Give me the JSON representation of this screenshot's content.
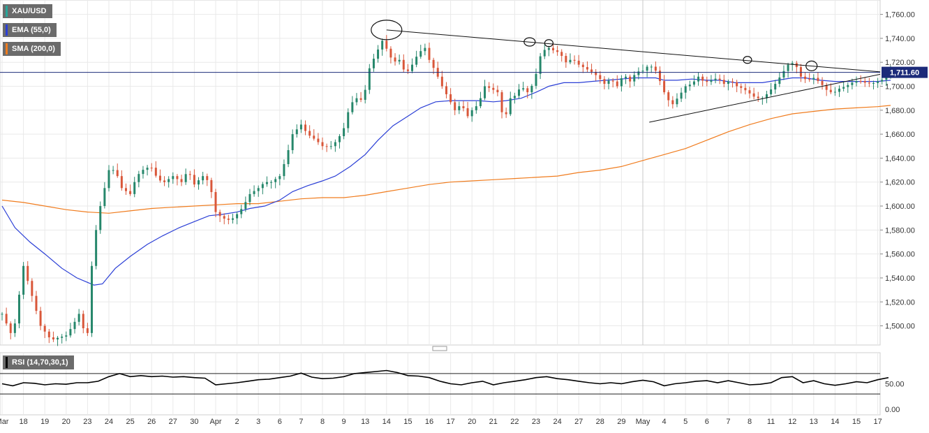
{
  "legend": {
    "main": {
      "label": "XAU/USD",
      "color": "#26a69a"
    },
    "ema": {
      "label": "EMA (55,0)",
      "color": "#2b3fd6"
    },
    "sma": {
      "label": "SMA (200,0)",
      "color": "#f07c1e"
    },
    "rsi": {
      "label": "RSI (14,70,30,1)",
      "color": "#000000"
    }
  },
  "colors": {
    "up": "#26876b",
    "down": "#d9573a",
    "ema": "#2b3fd6",
    "sma": "#f07c1e",
    "grid": "#e9e9e9",
    "price_line": "#1c2b7a",
    "price_badge": "#1c2b7a"
  },
  "chart_data": {
    "type": "candlestick",
    "symbol": "XAU/USD",
    "current_price_label": "1,711.60",
    "current_price": 1711.6,
    "y_range": [
      1484,
      1772
    ],
    "y_ticks": [
      {
        "v": 1500,
        "label": "1,500.00"
      },
      {
        "v": 1520,
        "label": "1,520.00"
      },
      {
        "v": 1540,
        "label": "1,540.00"
      },
      {
        "v": 1560,
        "label": "1,560.00"
      },
      {
        "v": 1580,
        "label": "1,580.00"
      },
      {
        "v": 1600,
        "label": "1,600.00"
      },
      {
        "v": 1620,
        "label": "1,620.00"
      },
      {
        "v": 1640,
        "label": "1,640.00"
      },
      {
        "v": 1660,
        "label": "1,660.00"
      },
      {
        "v": 1680,
        "label": "1,680.00"
      },
      {
        "v": 1700,
        "label": "1,700.00"
      },
      {
        "v": 1720,
        "label": "1,720.00"
      },
      {
        "v": 1740,
        "label": "1,740.00"
      },
      {
        "v": 1760,
        "label": "1,760.00"
      }
    ],
    "x_labels": [
      "Mar",
      "18",
      "19",
      "20",
      "23",
      "24",
      "25",
      "26",
      "27",
      "30",
      "Apr",
      "2",
      "3",
      "6",
      "7",
      "8",
      "9",
      "13",
      "14",
      "15",
      "16",
      "17",
      "20",
      "21",
      "22",
      "23",
      "24",
      "27",
      "28",
      "29",
      "May",
      "4",
      "5",
      "6",
      "7",
      "8",
      "11",
      "12",
      "13",
      "14",
      "15",
      "17"
    ],
    "price_path": [
      [
        0,
        1510
      ],
      [
        0.5,
        1490
      ],
      [
        1,
        1550
      ],
      [
        1.4,
        1525
      ],
      [
        1.8,
        1500
      ],
      [
        2.3,
        1488
      ],
      [
        2.6,
        1490
      ],
      [
        3,
        1492
      ],
      [
        3.3,
        1500
      ],
      [
        3.6,
        1510
      ],
      [
        3.9,
        1492
      ],
      [
        4,
        1494
      ],
      [
        4.1,
        1530
      ],
      [
        4.3,
        1570
      ],
      [
        4.6,
        1600
      ],
      [
        5,
        1630
      ],
      [
        5.3,
        1630
      ],
      [
        5.6,
        1615
      ],
      [
        6,
        1610
      ],
      [
        6.3,
        1625
      ],
      [
        6.7,
        1632
      ],
      [
        7,
        1632
      ],
      [
        7.3,
        1622
      ],
      [
        7.6,
        1620
      ],
      [
        8,
        1625
      ],
      [
        8.4,
        1620
      ],
      [
        8.7,
        1630
      ],
      [
        9,
        1618
      ],
      [
        9.4,
        1625
      ],
      [
        9.7,
        1620
      ],
      [
        10,
        1595
      ],
      [
        10.3,
        1590
      ],
      [
        10.7,
        1588
      ],
      [
        11.1,
        1595
      ],
      [
        11.3,
        1600
      ],
      [
        11.6,
        1610
      ],
      [
        12,
        1615
      ],
      [
        12.3,
        1620
      ],
      [
        12.6,
        1620
      ],
      [
        13,
        1625
      ],
      [
        13.3,
        1640
      ],
      [
        13.6,
        1660
      ],
      [
        14,
        1668
      ],
      [
        14.3,
        1660
      ],
      [
        14.7,
        1655
      ],
      [
        15,
        1650
      ],
      [
        15.4,
        1650
      ],
      [
        15.7,
        1655
      ],
      [
        16,
        1665
      ],
      [
        16.3,
        1685
      ],
      [
        16.6,
        1690
      ],
      [
        16.9,
        1688
      ],
      [
        17.2,
        1715
      ],
      [
        17.5,
        1727
      ],
      [
        17.8,
        1738
      ],
      [
        18.1,
        1728
      ],
      [
        18.3,
        1720
      ],
      [
        18.6,
        1722
      ],
      [
        18.9,
        1710
      ],
      [
        19.2,
        1718
      ],
      [
        19.5,
        1728
      ],
      [
        19.8,
        1732
      ],
      [
        20,
        1722
      ],
      [
        20.3,
        1712
      ],
      [
        20.6,
        1700
      ],
      [
        20.9,
        1690
      ],
      [
        21.2,
        1680
      ],
      [
        21.5,
        1685
      ],
      [
        21.8,
        1675
      ],
      [
        22,
        1680
      ],
      [
        22.3,
        1685
      ],
      [
        22.6,
        1700
      ],
      [
        22.9,
        1698
      ],
      [
        23.2,
        1695
      ],
      [
        23.5,
        1670
      ],
      [
        23.8,
        1690
      ],
      [
        24,
        1692
      ],
      [
        24.3,
        1700
      ],
      [
        24.6,
        1695
      ],
      [
        24.9,
        1703
      ],
      [
        25.2,
        1725
      ],
      [
        25.5,
        1733
      ],
      [
        25.8,
        1730
      ],
      [
        26.1,
        1728
      ],
      [
        26.4,
        1720
      ],
      [
        26.7,
        1723
      ],
      [
        27,
        1718
      ],
      [
        27.3,
        1715
      ],
      [
        27.6,
        1712
      ],
      [
        27.9,
        1708
      ],
      [
        28.2,
        1702
      ],
      [
        28.5,
        1706
      ],
      [
        28.8,
        1700
      ],
      [
        29.1,
        1710
      ],
      [
        29.4,
        1704
      ],
      [
        29.7,
        1712
      ],
      [
        30,
        1713
      ],
      [
        30.3,
        1718
      ],
      [
        30.6,
        1713
      ],
      [
        30.9,
        1700
      ],
      [
        31.1,
        1690
      ],
      [
        31.4,
        1685
      ],
      [
        31.7,
        1692
      ],
      [
        32,
        1700
      ],
      [
        32.3,
        1702
      ],
      [
        32.6,
        1708
      ],
      [
        32.9,
        1703
      ],
      [
        33.2,
        1705
      ],
      [
        33.5,
        1707
      ],
      [
        33.8,
        1702
      ],
      [
        34.1,
        1705
      ],
      [
        34.4,
        1700
      ],
      [
        34.7,
        1698
      ],
      [
        35,
        1694
      ],
      [
        35.3,
        1690
      ],
      [
        35.6,
        1690
      ],
      [
        35.9,
        1695
      ],
      [
        36.2,
        1702
      ],
      [
        36.5,
        1710
      ],
      [
        36.8,
        1718
      ],
      [
        37.1,
        1720
      ],
      [
        37.4,
        1708
      ],
      [
        37.7,
        1705
      ],
      [
        38,
        1707
      ],
      [
        38.3,
        1703
      ],
      [
        38.6,
        1697
      ],
      [
        38.9,
        1694
      ],
      [
        39.2,
        1698
      ],
      [
        39.5,
        1700
      ],
      [
        39.8,
        1703
      ],
      [
        40.1,
        1705
      ],
      [
        40.4,
        1703
      ],
      [
        40.7,
        1702
      ],
      [
        41,
        1704
      ],
      [
        41.3,
        1706
      ],
      [
        41.6,
        1711.6
      ]
    ],
    "ema_path": [
      [
        0,
        1600
      ],
      [
        0.6,
        1582
      ],
      [
        1.3,
        1570
      ],
      [
        2,
        1560
      ],
      [
        2.8,
        1548
      ],
      [
        3.5,
        1540
      ],
      [
        4.3,
        1534
      ],
      [
        4.7,
        1535
      ],
      [
        5.3,
        1548
      ],
      [
        6,
        1558
      ],
      [
        6.8,
        1568
      ],
      [
        7.5,
        1575
      ],
      [
        8.3,
        1582
      ],
      [
        9,
        1587
      ],
      [
        9.7,
        1592
      ],
      [
        10.3,
        1593
      ],
      [
        11,
        1595
      ],
      [
        11.6,
        1598
      ],
      [
        12.3,
        1600
      ],
      [
        13,
        1605
      ],
      [
        13.6,
        1612
      ],
      [
        14.3,
        1617
      ],
      [
        15,
        1621
      ],
      [
        15.6,
        1625
      ],
      [
        16.3,
        1633
      ],
      [
        17,
        1643
      ],
      [
        17.6,
        1655
      ],
      [
        18.3,
        1667
      ],
      [
        19,
        1675
      ],
      [
        19.6,
        1682
      ],
      [
        20.3,
        1687
      ],
      [
        21,
        1688
      ],
      [
        21.6,
        1688
      ],
      [
        22.3,
        1688
      ],
      [
        23,
        1687
      ],
      [
        23.6,
        1688
      ],
      [
        24.3,
        1690
      ],
      [
        25,
        1695
      ],
      [
        25.6,
        1700
      ],
      [
        26.3,
        1703
      ],
      [
        27,
        1703
      ],
      [
        27.6,
        1704
      ],
      [
        28.3,
        1705
      ],
      [
        29,
        1706
      ],
      [
        29.6,
        1707
      ],
      [
        30.3,
        1707
      ],
      [
        30.6,
        1707
      ],
      [
        31,
        1705
      ],
      [
        31.6,
        1705
      ],
      [
        32.3,
        1706
      ],
      [
        33,
        1705
      ],
      [
        33.6,
        1705
      ],
      [
        34.3,
        1703
      ],
      [
        35,
        1703
      ],
      [
        35.6,
        1703
      ],
      [
        36.3,
        1705
      ],
      [
        37,
        1707
      ],
      [
        37.6,
        1707
      ],
      [
        38.3,
        1705
      ],
      [
        39,
        1704
      ],
      [
        39.6,
        1704
      ],
      [
        40.3,
        1704
      ],
      [
        41,
        1704
      ],
      [
        41.6,
        1705
      ]
    ],
    "sma_path": [
      [
        0,
        1605
      ],
      [
        1,
        1603
      ],
      [
        2,
        1600
      ],
      [
        3,
        1597
      ],
      [
        4,
        1595
      ],
      [
        5,
        1594
      ],
      [
        6,
        1596
      ],
      [
        7,
        1598
      ],
      [
        8,
        1599
      ],
      [
        9,
        1600
      ],
      [
        10,
        1601
      ],
      [
        11,
        1602
      ],
      [
        12,
        1602
      ],
      [
        13,
        1604
      ],
      [
        14,
        1606
      ],
      [
        15,
        1607
      ],
      [
        16,
        1607
      ],
      [
        17,
        1609
      ],
      [
        18,
        1612
      ],
      [
        19,
        1615
      ],
      [
        20,
        1618
      ],
      [
        21,
        1620
      ],
      [
        22,
        1621
      ],
      [
        23,
        1622
      ],
      [
        24,
        1623
      ],
      [
        25,
        1624
      ],
      [
        26,
        1625
      ],
      [
        27,
        1628
      ],
      [
        28,
        1630
      ],
      [
        29,
        1633
      ],
      [
        30,
        1638
      ],
      [
        31,
        1643
      ],
      [
        32,
        1648
      ],
      [
        33,
        1655
      ],
      [
        34,
        1662
      ],
      [
        35,
        1668
      ],
      [
        36,
        1673
      ],
      [
        37,
        1677
      ],
      [
        38,
        1679
      ],
      [
        39,
        1681
      ],
      [
        40,
        1682
      ],
      [
        41,
        1683
      ],
      [
        41.6,
        1684
      ]
    ],
    "rsi": {
      "y_range": [
        0,
        100
      ],
      "y_ticks": [
        {
          "v": 0,
          "label": "0.00"
        },
        {
          "v": 50,
          "label": "50.00"
        }
      ],
      "overbought": 70,
      "oversold": 30,
      "path": [
        [
          0,
          50
        ],
        [
          0.5,
          46
        ],
        [
          1,
          52
        ],
        [
          1.5,
          51
        ],
        [
          2,
          48
        ],
        [
          2.5,
          50
        ],
        [
          3,
          49
        ],
        [
          3.5,
          52
        ],
        [
          4,
          52
        ],
        [
          4.5,
          55
        ],
        [
          5,
          64
        ],
        [
          5.5,
          70
        ],
        [
          6,
          64
        ],
        [
          6.5,
          66
        ],
        [
          7,
          64
        ],
        [
          7.5,
          65
        ],
        [
          8,
          63
        ],
        [
          8.5,
          64
        ],
        [
          9,
          62
        ],
        [
          9.5,
          61
        ],
        [
          10,
          48
        ],
        [
          10.5,
          50
        ],
        [
          11,
          52
        ],
        [
          11.5,
          55
        ],
        [
          12,
          58
        ],
        [
          12.5,
          59
        ],
        [
          13,
          62
        ],
        [
          13.5,
          65
        ],
        [
          14,
          71
        ],
        [
          14.5,
          63
        ],
        [
          15,
          60
        ],
        [
          15.5,
          61
        ],
        [
          16,
          64
        ],
        [
          16.5,
          70
        ],
        [
          17,
          72
        ],
        [
          17.5,
          74
        ],
        [
          18,
          76
        ],
        [
          18.5,
          72
        ],
        [
          19,
          66
        ],
        [
          19.5,
          65
        ],
        [
          20,
          62
        ],
        [
          20.5,
          55
        ],
        [
          21,
          50
        ],
        [
          21.5,
          48
        ],
        [
          22,
          52
        ],
        [
          22.5,
          55
        ],
        [
          23,
          48
        ],
        [
          23.5,
          52
        ],
        [
          24,
          55
        ],
        [
          24.5,
          58
        ],
        [
          25,
          62
        ],
        [
          25.5,
          64
        ],
        [
          26,
          60
        ],
        [
          26.5,
          58
        ],
        [
          27,
          55
        ],
        [
          27.5,
          52
        ],
        [
          28,
          50
        ],
        [
          28.5,
          52
        ],
        [
          29,
          50
        ],
        [
          29.5,
          54
        ],
        [
          30,
          57
        ],
        [
          30.5,
          54
        ],
        [
          31,
          46
        ],
        [
          31.5,
          50
        ],
        [
          32,
          52
        ],
        [
          32.5,
          55
        ],
        [
          33,
          56
        ],
        [
          33.5,
          52
        ],
        [
          34,
          56
        ],
        [
          34.5,
          52
        ],
        [
          35,
          48
        ],
        [
          35.5,
          49
        ],
        [
          36,
          52
        ],
        [
          36.5,
          62
        ],
        [
          37,
          64
        ],
        [
          37.5,
          52
        ],
        [
          38,
          56
        ],
        [
          38.5,
          50
        ],
        [
          39,
          47
        ],
        [
          39.5,
          50
        ],
        [
          40,
          54
        ],
        [
          40.5,
          52
        ],
        [
          41,
          58
        ],
        [
          41.5,
          62
        ]
      ]
    }
  }
}
